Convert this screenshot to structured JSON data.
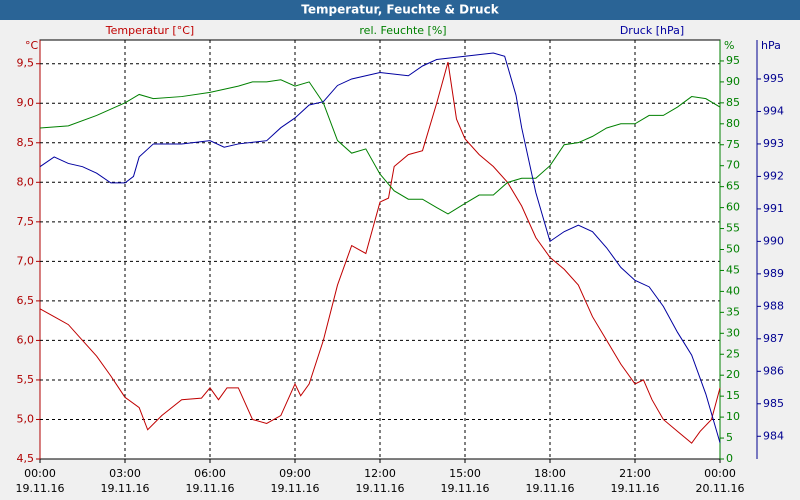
{
  "chart_data": {
    "type": "line",
    "title": "Temperatur, Feuchte & Druck",
    "xlim": [
      0,
      24
    ],
    "xticks": [
      {
        "value": 0,
        "label": "00:00"
      },
      {
        "value": 3,
        "label": "03:00"
      },
      {
        "value": 6,
        "label": "06:00"
      },
      {
        "value": 9,
        "label": "09:00"
      },
      {
        "value": 12,
        "label": "12:00"
      },
      {
        "value": 15,
        "label": "15:00"
      },
      {
        "value": 18,
        "label": "18:00"
      },
      {
        "value": 21,
        "label": "21:00"
      },
      {
        "value": 24,
        "label": "00:00"
      }
    ],
    "xtick_dates": [
      "19.11.16",
      "19.11.16",
      "19.11.16",
      "19.11.16",
      "19.11.16",
      "19.11.16",
      "19.11.16",
      "19.11.16",
      "20.11.16"
    ],
    "grid": true,
    "axes": [
      {
        "id": "y",
        "unit": "°C",
        "color": "#b00000",
        "ylim": [
          4.5,
          9.8
        ],
        "ticks": [
          {
            "value": 4.5,
            "label": "4,5"
          },
          {
            "value": 5.0,
            "label": "5,0"
          },
          {
            "value": 5.5,
            "label": "5,5"
          },
          {
            "value": 6.0,
            "label": "6,0"
          },
          {
            "value": 6.5,
            "label": "6,5"
          },
          {
            "value": 7.0,
            "label": "7,0"
          },
          {
            "value": 7.5,
            "label": "7,5"
          },
          {
            "value": 8.0,
            "label": "8,0"
          },
          {
            "value": 8.5,
            "label": "8,5"
          },
          {
            "value": 9.0,
            "label": "9,0"
          },
          {
            "value": 9.5,
            "label": "9,5"
          }
        ]
      },
      {
        "id": "y2",
        "unit": "%",
        "color": "#008000",
        "ylim": [
          0,
          100
        ],
        "ticks": [
          0,
          5,
          10,
          15,
          20,
          25,
          30,
          35,
          40,
          45,
          50,
          55,
          60,
          65,
          70,
          75,
          80,
          85,
          90,
          95
        ]
      },
      {
        "id": "y3",
        "unit": "hPa",
        "color": "#000090",
        "ylim": [
          983.3,
          996.2
        ],
        "ticks": [
          984,
          985,
          986,
          987,
          988,
          989,
          990,
          991,
          992,
          993,
          994,
          995
        ]
      }
    ],
    "series": [
      {
        "name": "Temperatur [°C]",
        "color": "#c00000",
        "axis": "y",
        "x": [
          0,
          0.5,
          1,
          1.5,
          2,
          2.5,
          3,
          3.5,
          3.8,
          4.3,
          5,
          5.7,
          6,
          6.3,
          6.6,
          7,
          7.5,
          8,
          8.5,
          9,
          9.2,
          9.5,
          10,
          10.5,
          11,
          11.5,
          12,
          12.3,
          12.5,
          13,
          13.5,
          14,
          14.4,
          14.7,
          15,
          15.5,
          16,
          16.5,
          17,
          17.5,
          18,
          18.5,
          19,
          19.5,
          20,
          20.5,
          21,
          21.3,
          21.6,
          22,
          22.5,
          23,
          23.3,
          23.7,
          24
        ],
        "values": [
          6.4,
          6.3,
          6.2,
          6.0,
          5.8,
          5.55,
          5.28,
          5.15,
          4.87,
          5.05,
          5.25,
          5.27,
          5.4,
          5.25,
          5.4,
          5.4,
          5.0,
          4.95,
          5.05,
          5.45,
          5.3,
          5.45,
          6.0,
          6.7,
          7.2,
          7.1,
          7.75,
          7.8,
          8.2,
          8.35,
          8.4,
          9.0,
          9.52,
          8.8,
          8.55,
          8.35,
          8.2,
          8.0,
          7.7,
          7.3,
          7.05,
          6.9,
          6.7,
          6.3,
          6.0,
          5.7,
          5.45,
          5.5,
          5.25,
          5.0,
          4.85,
          4.7,
          4.85,
          5.0,
          5.4
        ]
      },
      {
        "name": "rel. Feuchte [%]",
        "color": "#008000",
        "axis": "y2",
        "x": [
          0,
          1,
          2,
          3,
          3.5,
          4,
          5,
          6,
          7,
          7.5,
          8,
          8.5,
          9,
          9.5,
          10,
          10.5,
          11,
          11.5,
          12,
          12.5,
          13,
          13.5,
          14,
          14.4,
          15,
          15.5,
          16,
          16.5,
          17,
          17.5,
          18,
          18.5,
          19,
          19.5,
          20,
          20.5,
          21,
          21.5,
          22,
          22.5,
          23,
          23.5,
          24
        ],
        "values": [
          79,
          79.5,
          82,
          85,
          87,
          86,
          86.5,
          87.5,
          89,
          90,
          90,
          90.5,
          89,
          90,
          85,
          76,
          73,
          74,
          68,
          64,
          62,
          62,
          60,
          58.5,
          61,
          63,
          63,
          66,
          67,
          67,
          70,
          75,
          75.5,
          77,
          79,
          80,
          80,
          82,
          82,
          84,
          86.5,
          86,
          84
        ]
      },
      {
        "name": "Druck [hPa]",
        "color": "#0000a0",
        "axis": "y3",
        "x": [
          0,
          0.5,
          1,
          1.5,
          2,
          2.5,
          3,
          3.3,
          3.5,
          4,
          4.5,
          5,
          6,
          6.5,
          7,
          8,
          8.5,
          9,
          9.5,
          10,
          10.5,
          11,
          12,
          13,
          13.5,
          14,
          15,
          16,
          16.4,
          16.8,
          17,
          17.5,
          18,
          18.5,
          19,
          19.5,
          20,
          20.5,
          21,
          21.5,
          22,
          22.5,
          23,
          23.5,
          24
        ],
        "values": [
          992.3,
          992.6,
          992.4,
          992.3,
          992.1,
          991.8,
          991.8,
          992.0,
          992.6,
          993.0,
          993.0,
          993.0,
          993.1,
          992.9,
          993.0,
          993.1,
          993.5,
          993.8,
          994.2,
          994.3,
          994.8,
          995.0,
          995.2,
          995.1,
          995.4,
          995.6,
          995.7,
          995.8,
          995.7,
          994.5,
          993.5,
          991.5,
          990.0,
          990.3,
          990.5,
          990.3,
          989.8,
          989.2,
          988.8,
          988.6,
          988.0,
          987.2,
          986.5,
          985.3,
          983.8
        ]
      }
    ]
  }
}
